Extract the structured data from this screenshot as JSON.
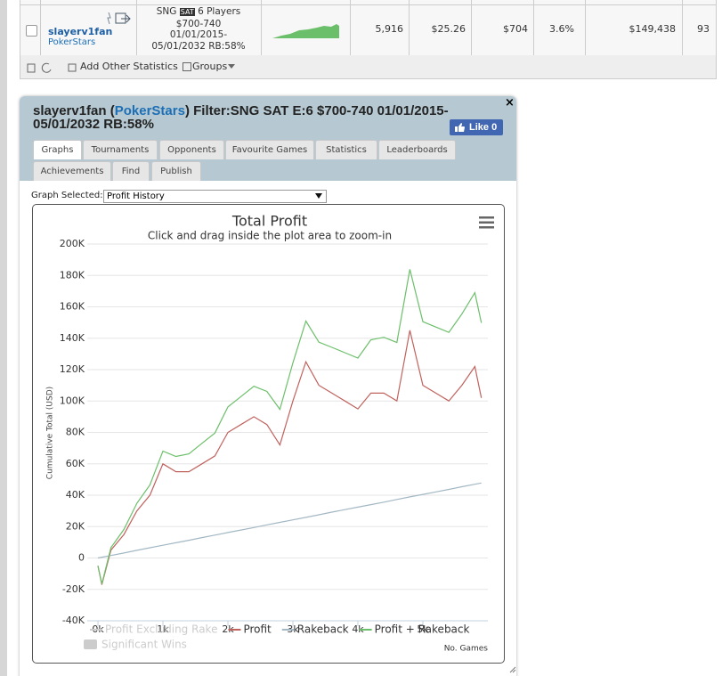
{
  "table": {
    "row": {
      "player": "slayerv1fan",
      "site": "PokerStars",
      "game": [
        "SNG",
        "SAT",
        "6 Players",
        "$700-740",
        "01/01/2015-",
        "05/01/2032 RB:58%"
      ],
      "stats": [
        "5,916",
        "$25.26",
        "$704",
        "3.6%",
        "$149,438",
        "93"
      ]
    }
  },
  "toolbar": {
    "add": "Add Other Statistics",
    "groups": "Groups"
  },
  "panel": {
    "title_parts": [
      "slayerv1fan (",
      "PokerStars",
      ") Filter:SNG SAT E:6 $700-740 01/01/2015-05/01/2032 RB:58%"
    ],
    "like": "Like 0",
    "close": "×",
    "tabs": [
      "Graphs",
      "Tournaments",
      "Opponents",
      "Favourite Games",
      "Statistics",
      "Leaderboards",
      "Achievements",
      "Find",
      "Publish"
    ],
    "graph_selected_label": "Graph Selected:",
    "graph_selected": "Profit History"
  },
  "chart_data": {
    "type": "line",
    "title": "Total Profit",
    "subtitle": "Click and drag inside the plot area to zoom-in",
    "y_label": "Cumulative Total (USD)",
    "x_label": "No. Games",
    "x": [
      0,
      60,
      200,
      400,
      600,
      800,
      1000,
      1200,
      1400,
      1600,
      1800,
      2000,
      2200,
      2400,
      2600,
      2800,
      3000,
      3200,
      3400,
      3600,
      3800,
      4000,
      4200,
      4400,
      4600,
      4800,
      5000,
      5200,
      5400,
      5600,
      5800,
      5900
    ],
    "series": [
      {
        "name": "Profit",
        "color": "#c0625e",
        "values": [
          -5000,
          -17000,
          5000,
          15000,
          30000,
          40000,
          60000,
          55000,
          55000,
          60000,
          65000,
          80000,
          85000,
          90000,
          85000,
          72000,
          100000,
          125000,
          110000,
          105000,
          100000,
          95000,
          105000,
          105000,
          100000,
          145000,
          110000,
          105000,
          100000,
          110000,
          122000,
          102000
        ]
      },
      {
        "name": "Rakeback",
        "color": "#a3b8c4",
        "values": [
          0,
          500,
          1600,
          3200,
          4900,
          6500,
          8100,
          9700,
          11300,
          13000,
          14600,
          16200,
          17800,
          19400,
          21100,
          22700,
          24300,
          25900,
          27500,
          29200,
          30800,
          32400,
          34000,
          35600,
          37300,
          38900,
          40500,
          42100,
          43700,
          45400,
          47000,
          47800
        ]
      },
      {
        "name": "Profit + Rakeback",
        "color": "#6cbf6a",
        "values": [
          -5000,
          -16500,
          6600,
          18200,
          34900,
          46500,
          68100,
          64700,
          66300,
          73000,
          79600,
          96200,
          102800,
          109400,
          106100,
          94700,
          124300,
          150900,
          137500,
          134200,
          130800,
          127400,
          139000,
          140600,
          137300,
          183900,
          150500,
          147100,
          143700,
          155400,
          169000,
          149800
        ]
      }
    ],
    "hidden_legend": [
      "Profit Excluding Rake",
      "Significant Wins"
    ],
    "hidden_color": "#cccccc",
    "xlim": [
      -165,
      6000
    ],
    "xticks": [
      {
        "value": 0,
        "label": "0k"
      },
      {
        "value": 1000,
        "label": "1k"
      },
      {
        "value": 2000,
        "label": "2k"
      },
      {
        "value": 3000,
        "label": "3k"
      },
      {
        "value": 4000,
        "label": "4k"
      },
      {
        "value": 5000,
        "label": "5k"
      }
    ],
    "ylim": [
      -40000,
      200000
    ],
    "yticks": [
      {
        "value": -40000,
        "label": "-40K"
      },
      {
        "value": -20000,
        "label": "-20K"
      },
      {
        "value": 0,
        "label": "0"
      },
      {
        "value": 20000,
        "label": "20K"
      },
      {
        "value": 40000,
        "label": "40K"
      },
      {
        "value": 60000,
        "label": "60K"
      },
      {
        "value": 80000,
        "label": "80K"
      },
      {
        "value": 100000,
        "label": "100K"
      },
      {
        "value": 120000,
        "label": "120K"
      },
      {
        "value": 140000,
        "label": "140K"
      },
      {
        "value": 160000,
        "label": "160K"
      },
      {
        "value": 180000,
        "label": "180K"
      },
      {
        "value": 200000,
        "label": "200K"
      }
    ],
    "grid": true
  }
}
